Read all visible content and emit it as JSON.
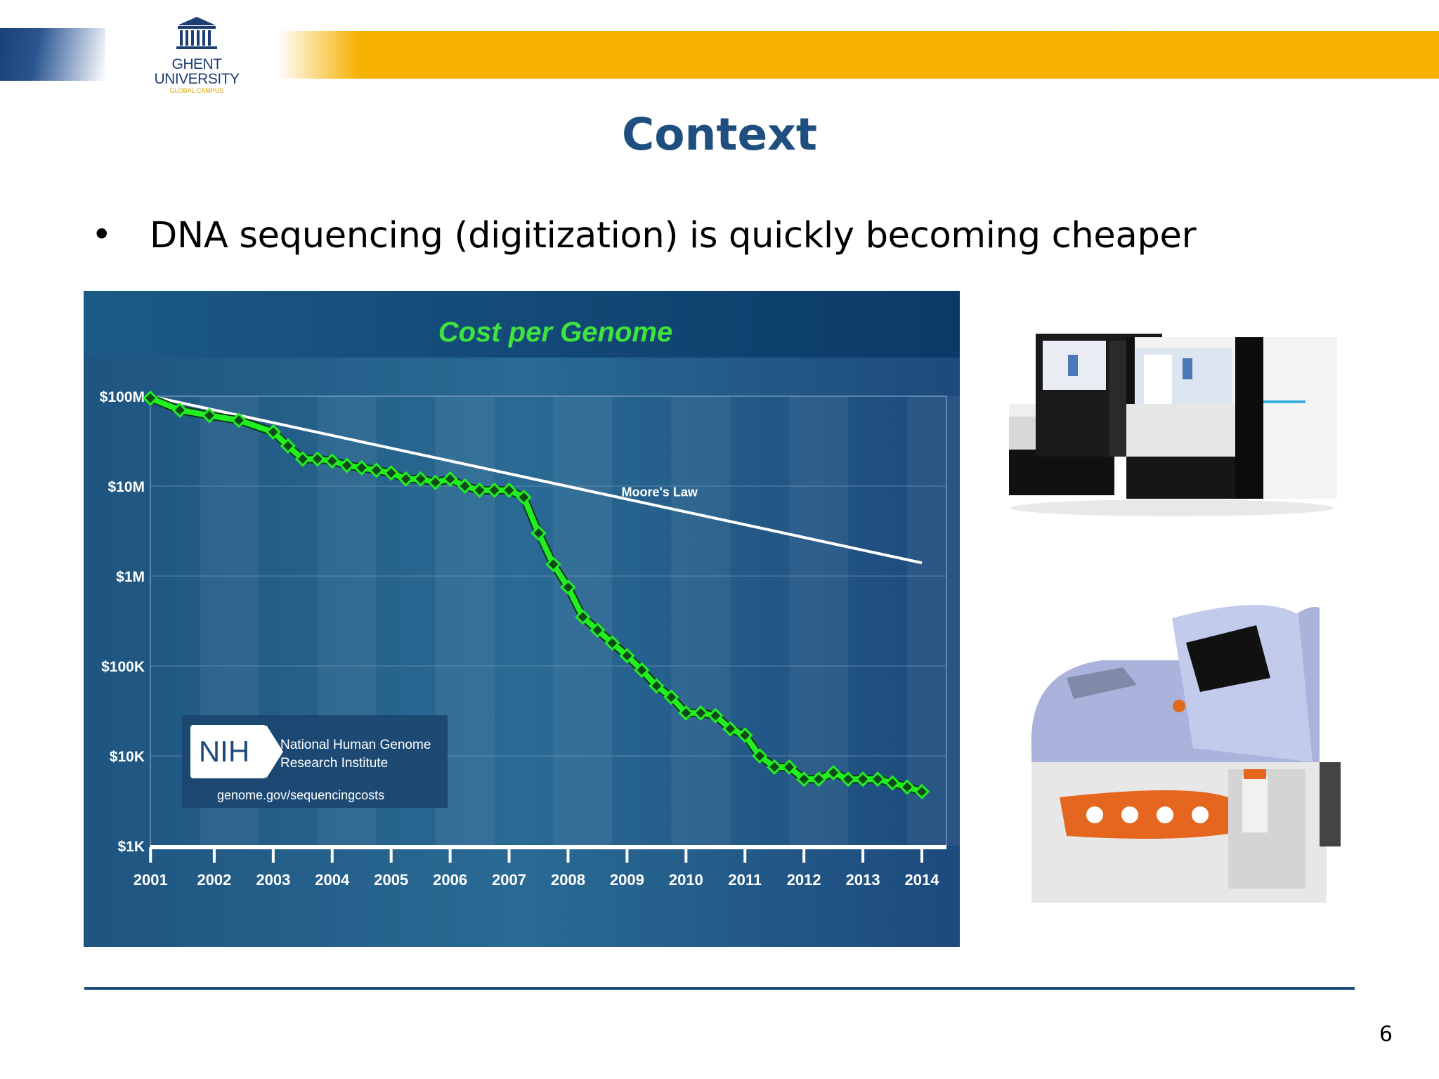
{
  "header": {
    "logo": {
      "line1": "GHENT",
      "line2": "UNIVERSITY",
      "line3": "GLOBAL CAMPUS"
    }
  },
  "slide": {
    "title": "Context",
    "bullet": "DNA sequencing (digitization) is quickly becoming cheaper",
    "page_number": "6"
  },
  "colors": {
    "title": "#1f4f7e",
    "accent_orange": "#f6b000",
    "rule": "#1f4f7e",
    "chart_background": "#1e4a7a",
    "series_green": "#22ee22",
    "moore_line": "#ffffff"
  },
  "nih_box": {
    "logo_text": "NIH",
    "org_line1": "National Human Genome",
    "org_line2": "Research Institute",
    "url": "genome.gov/sequencingcosts"
  },
  "images": {
    "top_icon": "sequencer-machines-image",
    "bottom_icon": "sequencer-device-image"
  },
  "chart_data": {
    "type": "line",
    "title": "Cost per Genome",
    "xlabel": "",
    "ylabel": "",
    "scale": "log",
    "x_tick_labels": [
      "2001",
      "2002",
      "2003",
      "2004",
      "2005",
      "2006",
      "2007",
      "2008",
      "2009",
      "2010",
      "2011",
      "2012",
      "2013",
      "2014"
    ],
    "y_tick_labels": [
      "$100M",
      "$10M",
      "$1M",
      "$100K",
      "$10K",
      "$1K"
    ],
    "y_tick_values": [
      100000000,
      10000000,
      1000000,
      100000,
      10000,
      1000
    ],
    "ylim": [
      1000,
      100000000
    ],
    "xlim": [
      "2001-09",
      "2015-03"
    ],
    "grid": true,
    "annotation": "Moore's Law",
    "series": [
      {
        "name": "",
        "x": [
          "2001-09",
          "2002-03",
          "2002-09",
          "2003-03",
          "2003-10",
          "2004-01",
          "2004-04",
          "2004-07",
          "2004-10",
          "2005-01",
          "2005-04",
          "2005-07",
          "2005-10",
          "2006-01",
          "2006-04",
          "2006-07",
          "2006-10",
          "2007-01",
          "2007-04",
          "2007-07",
          "2007-10",
          "2008-01",
          "2008-04",
          "2008-07",
          "2008-10",
          "2009-01",
          "2009-04",
          "2009-07",
          "2009-10",
          "2010-01",
          "2010-04",
          "2010-07",
          "2010-10",
          "2011-01",
          "2011-04",
          "2011-07",
          "2011-10",
          "2012-01",
          "2012-04",
          "2012-07",
          "2012-10",
          "2013-01",
          "2013-04",
          "2013-07",
          "2013-10",
          "2014-01",
          "2014-04",
          "2014-07",
          "2014-10"
        ],
        "values": [
          95000000,
          70000000,
          61000000,
          54000000,
          40000000,
          28000000,
          20000000,
          20000000,
          19000000,
          17000000,
          16000000,
          15000000,
          14000000,
          12000000,
          12000000,
          11000000,
          12000000,
          10000000,
          9000000,
          9000000,
          9000000,
          7500000,
          3000000,
          1350000,
          750000,
          350000,
          250000,
          180000,
          130000,
          90000,
          60000,
          45000,
          30000,
          30000,
          28000,
          20000,
          17000,
          10000,
          7500,
          7500,
          5500,
          5500,
          6500,
          5500,
          5500,
          5500,
          5000,
          4500,
          4000
        ]
      },
      {
        "name": "Moore's Law",
        "x": [
          "2001-09",
          "2014-10"
        ],
        "values": [
          100000000,
          1400000
        ]
      }
    ]
  }
}
